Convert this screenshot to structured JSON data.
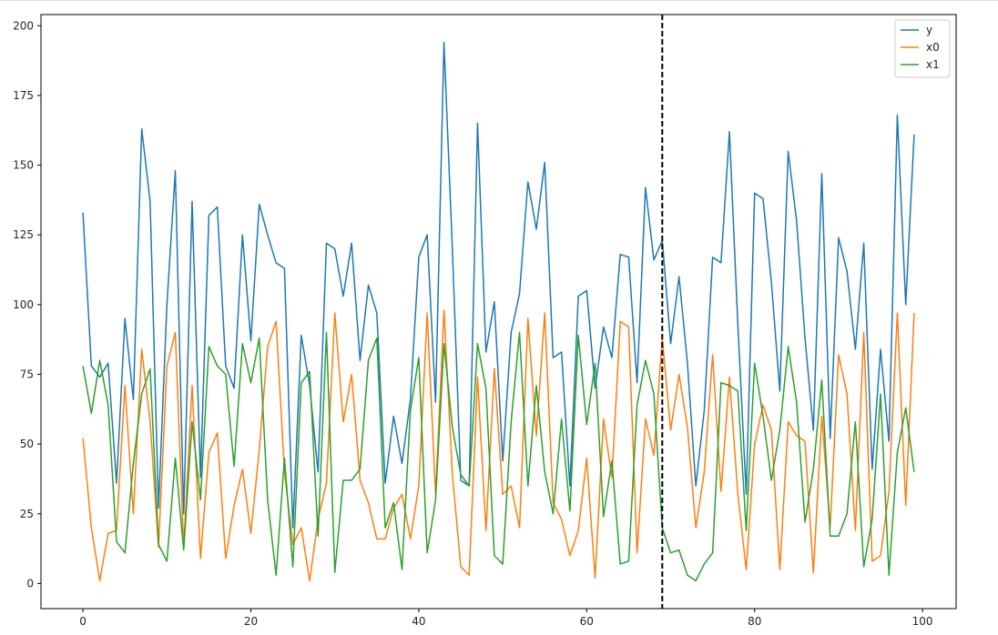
{
  "chart_data": {
    "type": "line",
    "title": "",
    "xlabel": "",
    "ylabel": "",
    "xlim": [
      -5,
      104
    ],
    "ylim": [
      -9,
      204
    ],
    "xticks": [
      0,
      20,
      40,
      60,
      80,
      100
    ],
    "xtick_labels": [
      "0",
      "20",
      "40",
      "60",
      "80",
      "100"
    ],
    "yticks": [
      0,
      25,
      50,
      75,
      100,
      125,
      150,
      175,
      200
    ],
    "ytick_labels": [
      "0",
      "25",
      "50",
      "75",
      "100",
      "125",
      "150",
      "175",
      "200"
    ],
    "grid": false,
    "legend_position": "top-right",
    "vline": {
      "x": 69,
      "color": "#000000",
      "style": "dashed"
    },
    "x": [
      0,
      1,
      2,
      3,
      4,
      5,
      6,
      7,
      8,
      9,
      10,
      11,
      12,
      13,
      14,
      15,
      16,
      17,
      18,
      19,
      20,
      21,
      22,
      23,
      24,
      25,
      26,
      27,
      28,
      29,
      30,
      31,
      32,
      33,
      34,
      35,
      36,
      37,
      38,
      39,
      40,
      41,
      42,
      43,
      44,
      45,
      46,
      47,
      48,
      49,
      50,
      51,
      52,
      53,
      54,
      55,
      56,
      57,
      58,
      59,
      60,
      61,
      62,
      63,
      64,
      65,
      66,
      67,
      68,
      69,
      70,
      71,
      72,
      73,
      74,
      75,
      76,
      77,
      78,
      79,
      80,
      81,
      82,
      83,
      84,
      85,
      86,
      87,
      88,
      89,
      90,
      91,
      92,
      93,
      94,
      95,
      96,
      97,
      98,
      99
    ],
    "series": [
      {
        "name": "y",
        "color": "#1f77b4",
        "values": [
          133,
          78,
          74,
          79,
          36,
          95,
          66,
          163,
          137,
          27,
          100,
          148,
          25,
          137,
          38,
          132,
          135,
          78,
          70,
          125,
          87,
          136,
          125,
          115,
          113,
          20,
          89,
          71,
          40,
          122,
          120,
          103,
          122,
          80,
          107,
          97,
          36,
          60,
          43,
          66,
          117,
          125,
          65,
          194,
          120,
          37,
          35,
          165,
          83,
          101,
          44,
          90,
          104,
          144,
          127,
          151,
          81,
          83,
          35,
          103,
          105,
          70,
          92,
          81,
          118,
          117,
          72,
          142,
          116,
          123,
          86,
          110,
          79,
          35,
          62,
          117,
          115,
          162,
          93,
          32,
          140,
          138,
          108,
          69,
          155,
          130,
          88,
          55,
          147,
          52,
          124,
          112,
          84,
          122,
          41,
          84,
          51,
          168,
          100,
          161
        ]
      },
      {
        "name": "x0",
        "color": "#ff7f0e",
        "values": [
          52,
          20,
          1,
          18,
          19,
          71,
          25,
          84,
          58,
          13,
          78,
          90,
          13,
          71,
          9,
          47,
          54,
          9,
          28,
          41,
          18,
          48,
          85,
          94,
          40,
          14,
          20,
          1,
          23,
          36,
          97,
          58,
          75,
          37,
          29,
          16,
          16,
          27,
          32,
          16,
          35,
          97,
          32,
          98,
          39,
          6,
          3,
          74,
          19,
          77,
          32,
          35,
          20,
          95,
          53,
          97,
          29,
          23,
          10,
          19,
          45,
          2,
          59,
          38,
          94,
          92,
          11,
          59,
          46,
          88,
          55,
          75,
          56,
          20,
          40,
          82,
          33,
          74,
          32,
          5,
          50,
          64,
          55,
          5,
          58,
          53,
          51,
          4,
          60,
          20,
          82,
          68,
          19,
          90,
          8,
          10,
          33,
          97,
          28,
          97
        ]
      },
      {
        "name": "x1",
        "color": "#2ca02c",
        "values": [
          78,
          61,
          80,
          64,
          15,
          11,
          43,
          68,
          77,
          14,
          8,
          45,
          12,
          58,
          30,
          85,
          78,
          75,
          42,
          86,
          72,
          88,
          30,
          3,
          45,
          6,
          72,
          76,
          17,
          90,
          4,
          37,
          37,
          41,
          80,
          88,
          20,
          29,
          5,
          62,
          81,
          11,
          30,
          86,
          56,
          39,
          35,
          86,
          70,
          10,
          7,
          58,
          90,
          35,
          71,
          40,
          25,
          59,
          26,
          89,
          57,
          79,
          24,
          44,
          7,
          8,
          64,
          80,
          68,
          20,
          11,
          12,
          3,
          1,
          7,
          11,
          72,
          71,
          69,
          19,
          79,
          60,
          37,
          55,
          85,
          65,
          22,
          41,
          73,
          17,
          17,
          25,
          58,
          6,
          23,
          68,
          3,
          47,
          63,
          40
        ]
      }
    ]
  }
}
